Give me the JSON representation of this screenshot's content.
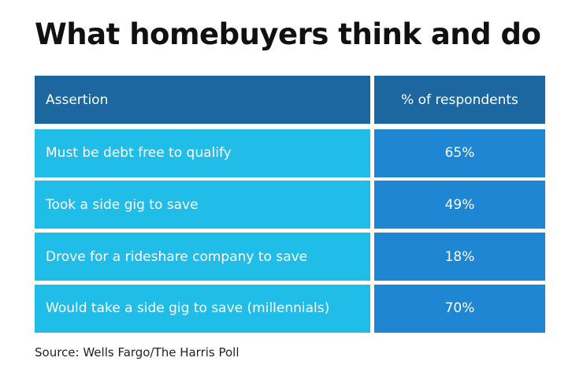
{
  "title": "What homebuyers think and do",
  "table": {
    "header": [
      "Assertion",
      "% of respondents"
    ],
    "rows": [
      [
        "Must be debt free to qualify",
        "65%"
      ],
      [
        "Took a side gig to save",
        "49%"
      ],
      [
        "Drove for a rideshare company to save",
        "18%"
      ],
      [
        "Would take a side gig to save (millennials)",
        "70%"
      ]
    ]
  },
  "source": "Source: Wells Fargo/The Harris Poll"
}
